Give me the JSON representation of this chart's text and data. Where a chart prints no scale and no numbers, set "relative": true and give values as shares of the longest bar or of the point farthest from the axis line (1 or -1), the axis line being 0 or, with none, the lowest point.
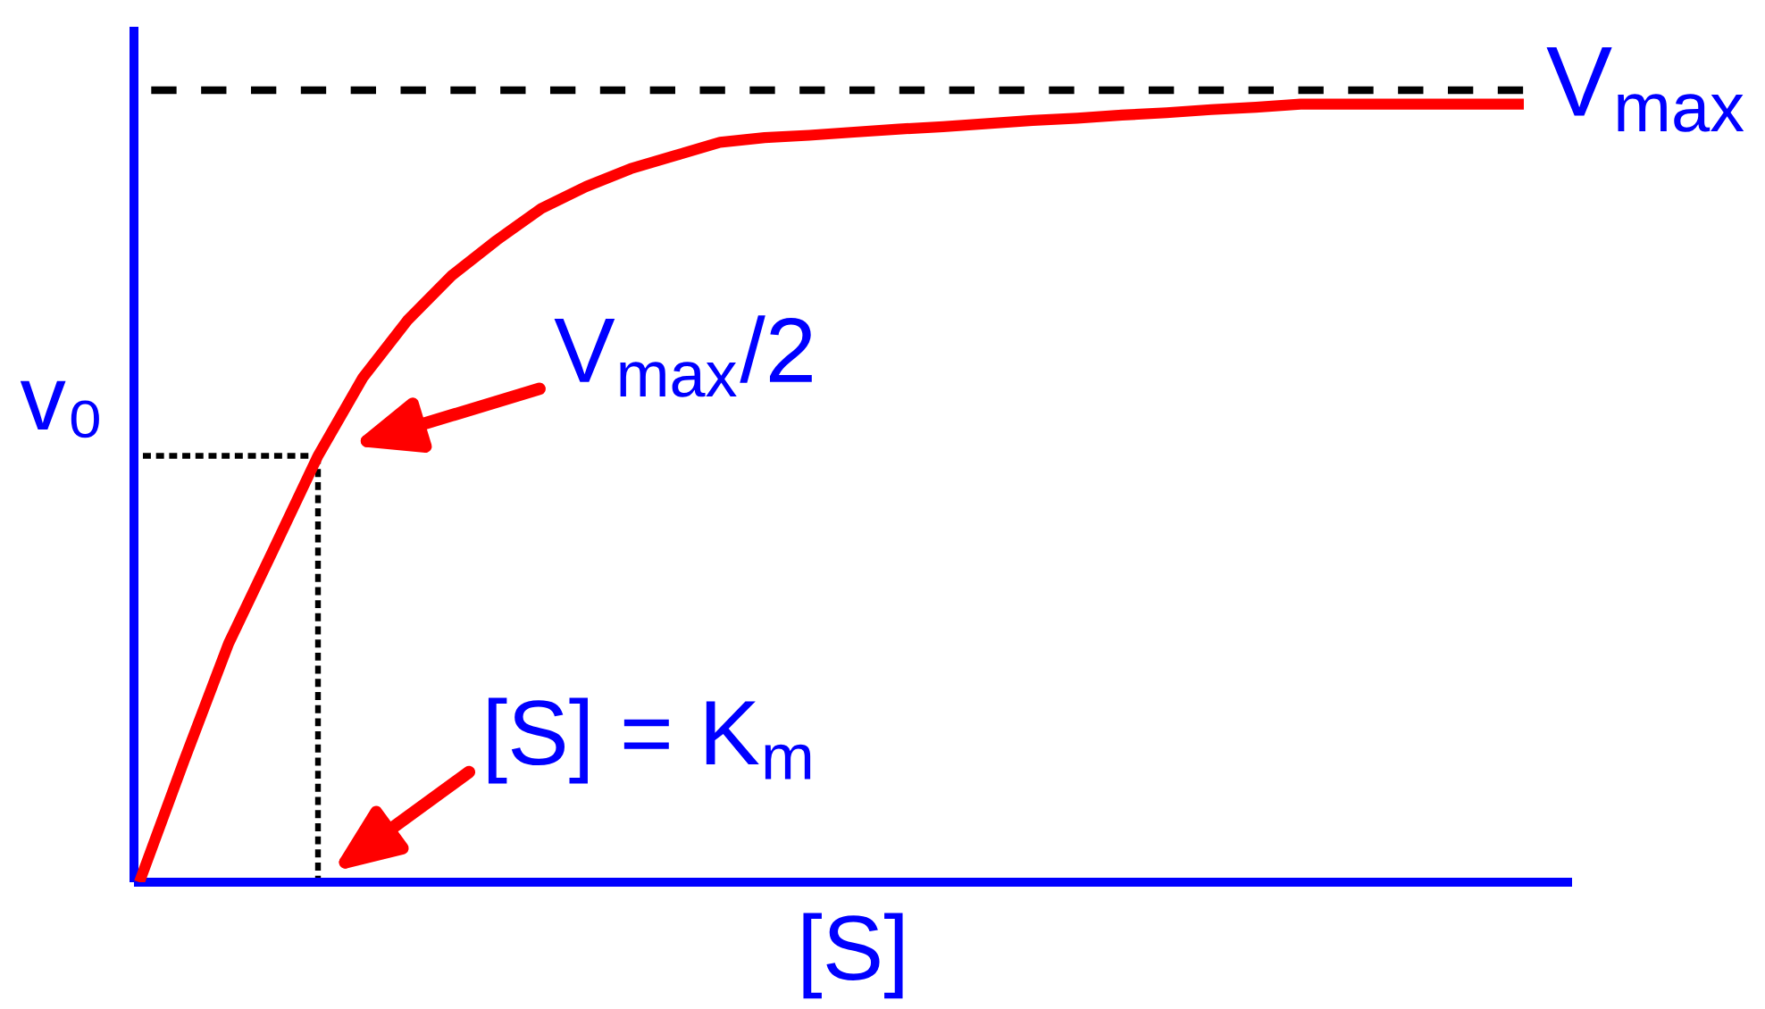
{
  "chart_data": {
    "type": "line",
    "relative": true,
    "xlabel": "[S]",
    "ylabel": "v₀",
    "categories": [
      null,
      null,
      null,
      null,
      null,
      null,
      null,
      null,
      null,
      null,
      null,
      null,
      null,
      null,
      null,
      null,
      null,
      null,
      null,
      null,
      null,
      null,
      null,
      null,
      null,
      null,
      null,
      null,
      null,
      null,
      null,
      null
    ],
    "series": [
      {
        "color": "#ff0000",
        "values": [
          0,
          0.156,
          0.307,
          0.427,
          0.548,
          0.648,
          0.722,
          0.78,
          0.825,
          0.866,
          0.894,
          0.917,
          0.934,
          0.951,
          0.957,
          0.96,
          0.964,
          0.968,
          0.971,
          0.975,
          0.979,
          0.982,
          0.986,
          0.989,
          0.993,
          0.996,
          1.0,
          1.0,
          1.0,
          1.0,
          1.0,
          1.0
        ]
      }
    ],
    "ref_lines": [
      {
        "axis": "y",
        "value": 1.018,
        "label": "V$_{max}$",
        "color": "#000000",
        "line_style": "dashed"
      },
      {
        "axis": "y",
        "value": 0.548,
        "color": "#000000",
        "line_style": "dotted"
      }
    ],
    "annotations": [
      "V$_{max}$/2",
      "[S] = K$_{m}$"
    ]
  }
}
